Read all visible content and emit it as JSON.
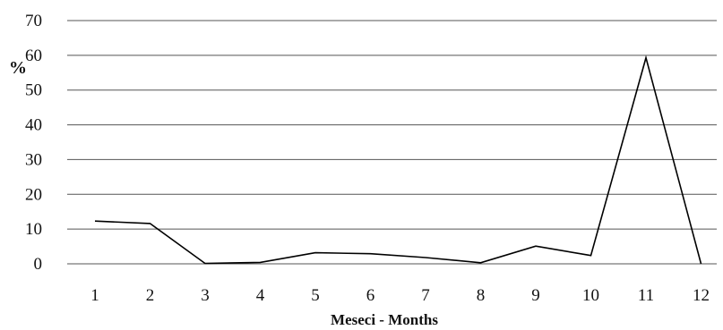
{
  "chart_data": {
    "type": "line",
    "xlabel": "Meseci - Months",
    "ylabel": "%",
    "categories": [
      "1",
      "2",
      "3",
      "4",
      "5",
      "6",
      "7",
      "8",
      "9",
      "10",
      "11",
      "12"
    ],
    "y_ticks": [
      "0",
      "10",
      "20",
      "30",
      "40",
      "50",
      "60",
      "70"
    ],
    "ylim": [
      0,
      70
    ],
    "grid": true,
    "series": [
      {
        "values": [
          12.3,
          11.6,
          0.1,
          0.4,
          3.2,
          2.9,
          1.8,
          0.3,
          5.1,
          2.4,
          59.3,
          0.0
        ]
      }
    ],
    "line_color": "#000000",
    "grid_color": "#555555"
  }
}
